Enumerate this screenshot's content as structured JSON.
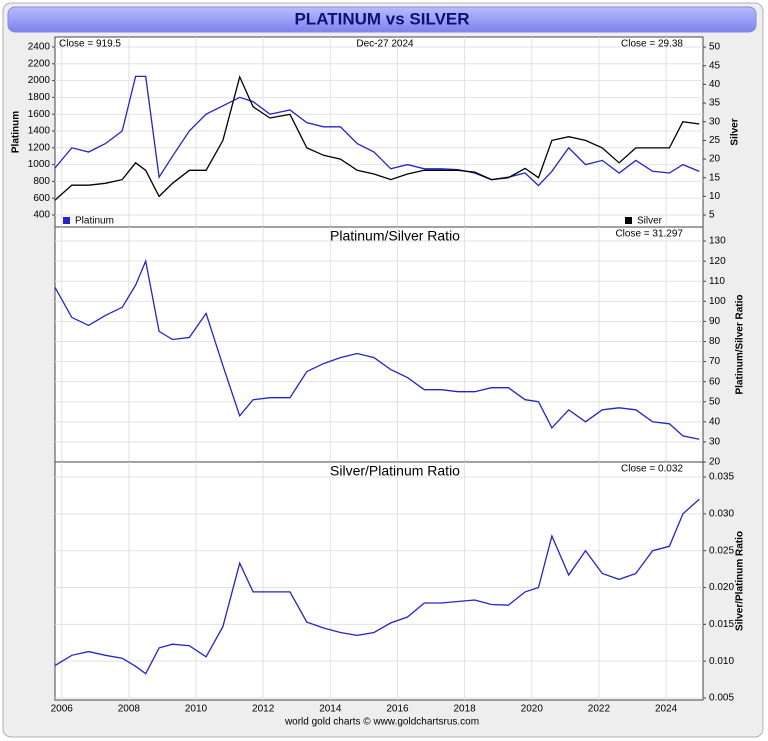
{
  "title": "PLATINUM vs SILVER",
  "source": "world gold charts © www.goldchartsrus.com",
  "chart_data": [
    {
      "type": "line",
      "left_note": "Close = 919.5",
      "center_note": "Dec-27  2024",
      "right_note": "Close = 29.38",
      "ylabel": "Platinum",
      "y2label": "Silver",
      "yaxis": "left",
      "grid": true,
      "xlim": [
        2005.8,
        2025.1
      ],
      "ylim": [
        257,
        2519
      ],
      "yticks": [
        400,
        600,
        800,
        1000,
        1200,
        1400,
        1600,
        1800,
        2000,
        2200,
        2400
      ],
      "y2lim": [
        1.8,
        52.7
      ],
      "y2ticks": [
        5,
        10,
        15,
        20,
        25,
        30,
        35,
        40,
        45,
        50
      ],
      "x": [
        2005.8,
        2006.3,
        2006.8,
        2007.3,
        2007.8,
        2008.2,
        2008.5,
        2008.9,
        2009.3,
        2009.8,
        2010.3,
        2010.8,
        2011.3,
        2011.7,
        2012.2,
        2012.8,
        2013.3,
        2013.8,
        2014.3,
        2014.8,
        2015.3,
        2015.8,
        2016.3,
        2016.8,
        2017.3,
        2017.8,
        2018.3,
        2018.8,
        2019.3,
        2019.8,
        2020.2,
        2020.6,
        2021.1,
        2021.6,
        2022.1,
        2022.6,
        2023.1,
        2023.6,
        2024.1,
        2024.5,
        2024.99
      ],
      "series": [
        {
          "name": "Platinum",
          "color": "#2424c8",
          "values": [
            960,
            1200,
            1150,
            1250,
            1400,
            2050,
            2050,
            850,
            1100,
            1400,
            1600,
            1700,
            1800,
            1750,
            1600,
            1650,
            1500,
            1450,
            1450,
            1250,
            1150,
            950,
            1000,
            950,
            950,
            940,
            900,
            820,
            850,
            900,
            750,
            920,
            1200,
            1000,
            1050,
            900,
            1050,
            920,
            900,
            1000,
            919.5
          ]
        },
        {
          "name": "Silver",
          "color": "#000000",
          "axis": "y2",
          "values": [
            9,
            13,
            13,
            13.5,
            14.5,
            19,
            17,
            10,
            13.5,
            17,
            17,
            25,
            42,
            34,
            31,
            32,
            23,
            21,
            20,
            17,
            16,
            14.5,
            16,
            17,
            17,
            17,
            16.5,
            14.5,
            15,
            17.5,
            15,
            25,
            26,
            25,
            23,
            19,
            23,
            23,
            23,
            30,
            29.38
          ]
        }
      ]
    },
    {
      "type": "line",
      "title": "Platinum/Silver Ratio",
      "right_note": "Close = 31.297",
      "ylabel": "Platinum/Silver Ratio",
      "yaxis": "right",
      "grid": true,
      "xlim": [
        2005.8,
        2025.1
      ],
      "ylim": [
        20,
        137
      ],
      "yticks": [
        20,
        30,
        40,
        50,
        60,
        70,
        80,
        90,
        100,
        110,
        120,
        130
      ],
      "x": [
        2005.8,
        2006.3,
        2006.8,
        2007.3,
        2007.8,
        2008.2,
        2008.5,
        2008.9,
        2009.3,
        2009.8,
        2010.3,
        2010.8,
        2011.3,
        2011.7,
        2012.2,
        2012.8,
        2013.3,
        2013.8,
        2014.3,
        2014.8,
        2015.3,
        2015.8,
        2016.3,
        2016.8,
        2017.3,
        2017.8,
        2018.3,
        2018.8,
        2019.3,
        2019.8,
        2020.2,
        2020.6,
        2021.1,
        2021.6,
        2022.1,
        2022.6,
        2023.1,
        2023.6,
        2024.1,
        2024.5,
        2024.99
      ],
      "series": [
        {
          "color": "#2424c8",
          "values": [
            107,
            92,
            88,
            93,
            97,
            108,
            120,
            85,
            81,
            82,
            94,
            68,
            43,
            51,
            52,
            52,
            65,
            69,
            72,
            74,
            72,
            66,
            62,
            56,
            56,
            55,
            55,
            57,
            57,
            51,
            50,
            37,
            46,
            40,
            46,
            47,
            46,
            40,
            39,
            33,
            31.297
          ]
        }
      ]
    },
    {
      "type": "line",
      "title": "Silver/Platinum Ratio",
      "right_note": "Close = 0.032",
      "ylabel": "Silver/Platinum Ratio",
      "yaxis": "right",
      "grid": true,
      "xlim": [
        2005.8,
        2025.1
      ],
      "ylim": [
        0.00473,
        0.03704
      ],
      "yticks": [
        0.005,
        {
          "value": 0.01,
          "label": "0.010"
        },
        0.015,
        {
          "value": 0.02,
          "label": "0.020"
        },
        0.025,
        {
          "value": 0.03,
          "label": "0.030"
        },
        0.035
      ],
      "xticks": [
        2006,
        2008,
        2010,
        2012,
        2014,
        2016,
        2018,
        2020,
        2022,
        2024
      ],
      "x": [
        2005.8,
        2006.3,
        2006.8,
        2007.3,
        2007.8,
        2008.2,
        2008.5,
        2008.9,
        2009.3,
        2009.8,
        2010.3,
        2010.8,
        2011.3,
        2011.7,
        2012.2,
        2012.8,
        2013.3,
        2013.8,
        2014.3,
        2014.8,
        2015.3,
        2015.8,
        2016.3,
        2016.8,
        2017.3,
        2017.8,
        2018.3,
        2018.8,
        2019.3,
        2019.8,
        2020.2,
        2020.6,
        2021.1,
        2021.6,
        2022.1,
        2022.6,
        2023.1,
        2023.6,
        2024.1,
        2024.5,
        2024.99
      ],
      "series": [
        {
          "color": "#2424c8",
          "values": [
            0.0094,
            0.0108,
            0.0113,
            0.0108,
            0.0104,
            0.0093,
            0.0083,
            0.0118,
            0.0123,
            0.0121,
            0.0106,
            0.0147,
            0.0233,
            0.0194,
            0.0194,
            0.0194,
            0.0153,
            0.0145,
            0.0139,
            0.0135,
            0.0139,
            0.0152,
            0.016,
            0.0179,
            0.0179,
            0.0181,
            0.0183,
            0.0177,
            0.0176,
            0.0194,
            0.02,
            0.027,
            0.0217,
            0.025,
            0.0219,
            0.0211,
            0.0219,
            0.025,
            0.0256,
            0.03,
            0.032
          ]
        }
      ]
    }
  ]
}
